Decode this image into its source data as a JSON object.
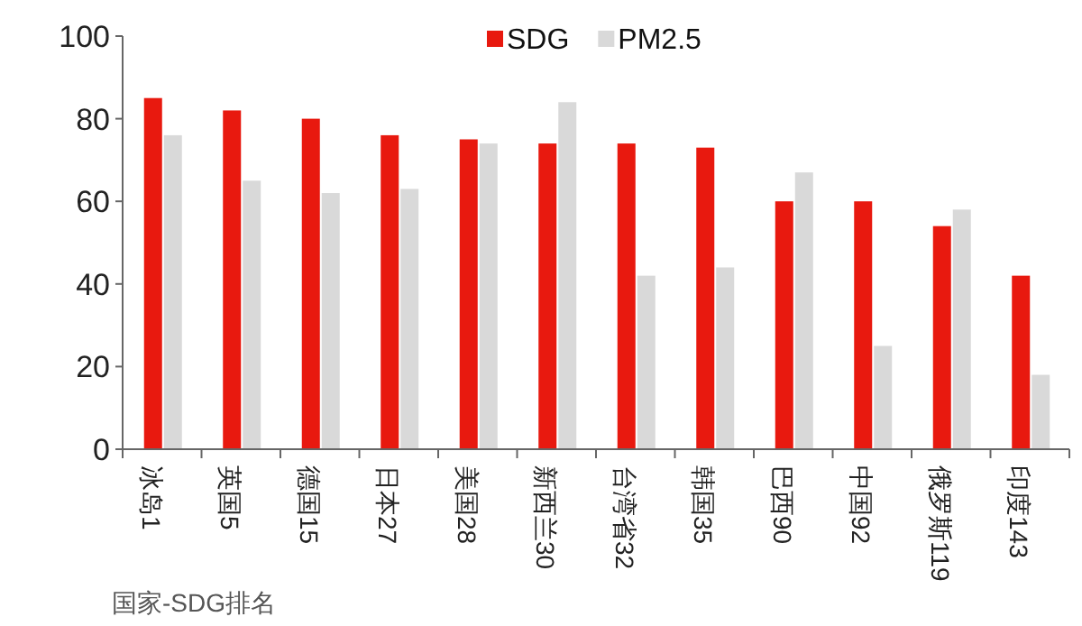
{
  "chart_data": {
    "type": "bar",
    "xlabel": "国家-SDG排名",
    "categories": [
      "冰岛1",
      "英国5",
      "德国15",
      "日本27",
      "美国28",
      "新西兰30",
      "台湾省32",
      "韩国35",
      "巴西90",
      "中国92",
      "俄罗斯119",
      "印度143"
    ],
    "series": [
      {
        "name": "SDG",
        "color": "#e8190f",
        "values": [
          85,
          82,
          80,
          76,
          75,
          74,
          74,
          73,
          60,
          60,
          54,
          42
        ]
      },
      {
        "name": "PM2.5",
        "color": "#d9d9d9",
        "values": [
          76,
          65,
          62,
          63,
          74,
          84,
          42,
          44,
          67,
          25,
          58,
          18
        ]
      }
    ],
    "ylim": [
      0,
      100
    ],
    "yticks": [
      0,
      20,
      40,
      60,
      80,
      100
    ],
    "grid": false,
    "legend": "top right"
  }
}
